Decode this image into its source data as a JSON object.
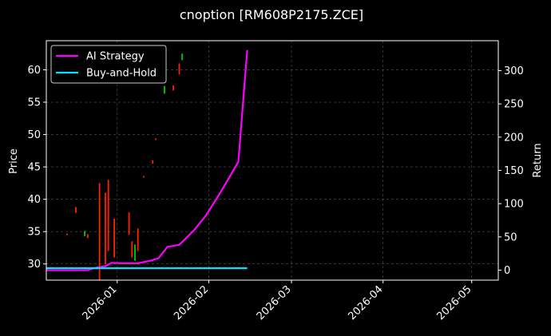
{
  "chart_data": {
    "type": "line",
    "title": "cnoption [RM608P2175.ZCE]",
    "xlabel": "",
    "ylabel": "Price",
    "ylabel_right": "Return",
    "x_ticks": [
      "2026-01",
      "2026-02",
      "2026-03",
      "2026-04",
      "2026-05"
    ],
    "x_range": [
      "2025-12-08",
      "2026-05-10"
    ],
    "y_left_ticks": [
      30,
      35,
      40,
      45,
      50,
      55,
      60
    ],
    "y_left_range": [
      27.5,
      64.5
    ],
    "y_right_ticks": [
      0,
      50,
      100,
      150,
      200,
      250,
      300
    ],
    "y_right_range": [
      -15,
      345
    ],
    "grid": true,
    "legend_position": "top-left",
    "colors": {
      "up": "#00cc00",
      "down": "#ff2200",
      "strategy": "#ff00ff",
      "buyhold": "#00e5ff",
      "background": "#000000",
      "grid": "#555555"
    },
    "series": [
      {
        "name": "AI Strategy",
        "axis": "right",
        "color": "#ff00ff",
        "points": [
          [
            "2025-12-08",
            0
          ],
          [
            "2025-12-22",
            0
          ],
          [
            "2025-12-25",
            4
          ],
          [
            "2025-12-28",
            6
          ],
          [
            "2025-12-30",
            11
          ],
          [
            "2026-01-03",
            10.5
          ],
          [
            "2026-01-08",
            10.5
          ],
          [
            "2026-01-12",
            14
          ],
          [
            "2026-01-15",
            18
          ],
          [
            "2026-01-18",
            35
          ],
          [
            "2026-01-22",
            38
          ],
          [
            "2026-01-27",
            60
          ],
          [
            "2026-01-31",
            82
          ],
          [
            "2026-02-04",
            110
          ],
          [
            "2026-02-08",
            140
          ],
          [
            "2026-02-11",
            163
          ],
          [
            "2026-02-14",
            331
          ]
        ]
      },
      {
        "name": "Buy-and-Hold",
        "axis": "right",
        "color": "#00e5ff",
        "points": [
          [
            "2025-12-08",
            3
          ],
          [
            "2026-02-14",
            3
          ]
        ]
      }
    ],
    "candles": [
      {
        "date": "2025-12-15",
        "low": 34.5,
        "high": 34.7,
        "dir": "down"
      },
      {
        "date": "2025-12-18",
        "low": 37.9,
        "high": 38.8,
        "dir": "down"
      },
      {
        "date": "2025-12-21",
        "low": 34.3,
        "high": 35.1,
        "dir": "up"
      },
      {
        "date": "2025-12-22",
        "low": 34.0,
        "high": 34.6,
        "dir": "down"
      },
      {
        "date": "2025-12-26",
        "low": 27.5,
        "high": 42.5,
        "dir": "down"
      },
      {
        "date": "2025-12-28",
        "low": 30.0,
        "high": 41.0,
        "dir": "down"
      },
      {
        "date": "2025-12-29",
        "low": 32.0,
        "high": 43.0,
        "dir": "down"
      },
      {
        "date": "2025-12-31",
        "low": 31.0,
        "high": 37.0,
        "dir": "down"
      },
      {
        "date": "2026-01-05",
        "low": 34.5,
        "high": 38.0,
        "dir": "down"
      },
      {
        "date": "2026-01-06",
        "low": 31.0,
        "high": 33.5,
        "dir": "down"
      },
      {
        "date": "2026-01-07",
        "low": 30.5,
        "high": 33.0,
        "dir": "up"
      },
      {
        "date": "2026-01-08",
        "low": 32.0,
        "high": 35.5,
        "dir": "down"
      },
      {
        "date": "2026-01-10",
        "low": 43.4,
        "high": 43.6,
        "dir": "down"
      },
      {
        "date": "2026-01-13",
        "low": 45.5,
        "high": 46.0,
        "dir": "down"
      },
      {
        "date": "2026-01-14",
        "low": 49.2,
        "high": 49.4,
        "dir": "down"
      },
      {
        "date": "2026-01-17",
        "low": 56.3,
        "high": 57.5,
        "dir": "up"
      },
      {
        "date": "2026-01-20",
        "low": 56.8,
        "high": 57.6,
        "dir": "down"
      },
      {
        "date": "2026-01-22",
        "low": 59.3,
        "high": 61.0,
        "dir": "down"
      },
      {
        "date": "2026-01-23",
        "low": 61.5,
        "high": 62.5,
        "dir": "up"
      }
    ]
  }
}
